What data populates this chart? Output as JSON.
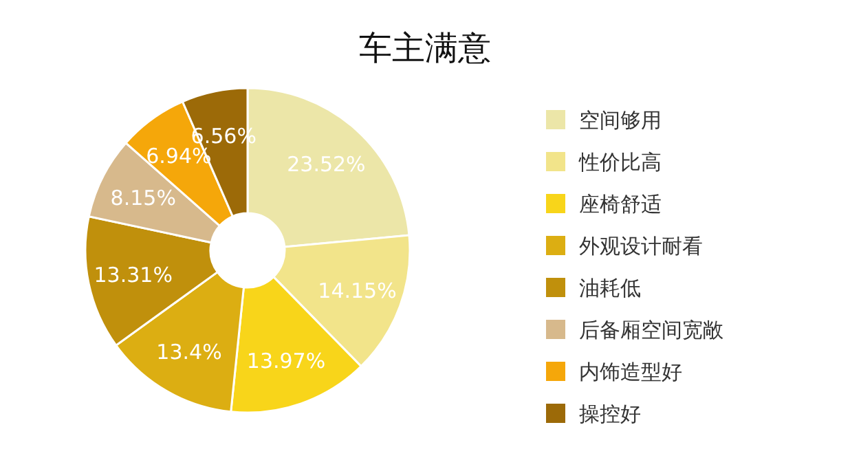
{
  "chart_data": {
    "type": "donut",
    "title": "车主满意",
    "categories": [
      "空间够用",
      "性价比高",
      "座椅舒适",
      "外观设计耐看",
      "油耗低",
      "后备厢空间宽敞",
      "内饰造型好",
      "操控好"
    ],
    "values": [
      23.52,
      14.15,
      13.97,
      13.4,
      13.31,
      8.15,
      6.94,
      6.56
    ],
    "value_labels": [
      "23.52%",
      "14.15%",
      "13.97%",
      "13.4%",
      "13.31%",
      "8.15%",
      "6.94%",
      "6.56%"
    ],
    "colors": [
      "#ece6a8",
      "#f2e48a",
      "#f8d51a",
      "#dcae12",
      "#c0900c",
      "#d7b98c",
      "#f5a70a",
      "#9c6a08"
    ],
    "legend": "right"
  }
}
